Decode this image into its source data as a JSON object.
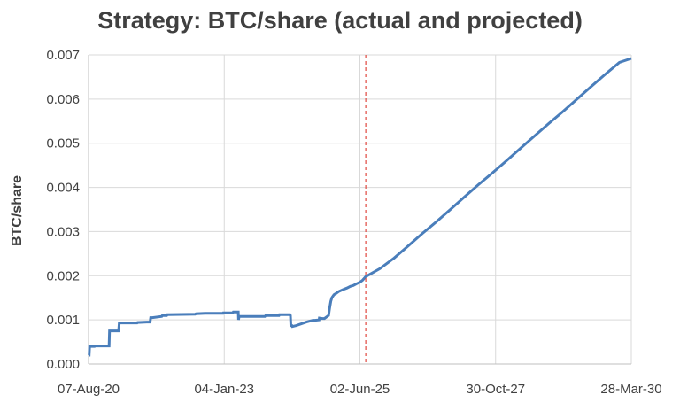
{
  "chart_data": {
    "type": "line",
    "title": "Strategy: BTC/share (actual and projected)",
    "xlabel": "",
    "ylabel": "BTC/share",
    "x_type": "date",
    "x_tick_labels": [
      "07-Aug-20",
      "04-Jan-23",
      "02-Jun-25",
      "30-Oct-27",
      "28-Mar-30"
    ],
    "x_tick_dates": [
      "2020-08-07",
      "2023-01-04",
      "2025-06-02",
      "2027-10-30",
      "2030-03-28"
    ],
    "xlim": [
      "2020-08-07",
      "2030-03-28"
    ],
    "y_tick_labels": [
      "0.000",
      "0.001",
      "0.002",
      "0.003",
      "0.004",
      "0.005",
      "0.006",
      "0.007"
    ],
    "ylim": [
      0,
      0.007
    ],
    "grid": true,
    "legend": "none",
    "colors": {
      "series": "#4a7ebb",
      "marker_line": "#e0473f",
      "grid": "#d9d9d9",
      "text": "#404040"
    },
    "vertical_marker": {
      "date": "2025-07-10",
      "style": "dashed"
    },
    "series": [
      {
        "x": [
          "2020-08-07",
          "2020-08-11",
          "2020-08-14",
          "2020-09-14",
          "2020-09-15",
          "2020-12-18",
          "2020-12-21",
          "2021-02-18",
          "2021-02-22",
          "2021-06-18",
          "2021-06-21",
          "2021-08-19",
          "2021-09-10",
          "2021-09-14",
          "2021-09-25",
          "2021-11-25",
          "2021-11-29",
          "2021-12-27",
          "2021-12-31",
          "2022-06-30",
          "2022-07-05",
          "2022-09-01",
          "2022-12-27",
          "2022-12-29",
          "2023-02-28",
          "2023-03-04",
          "2023-04-05",
          "2023-04-07",
          "2023-04-10",
          "2023-06-28",
          "2023-09-25",
          "2023-09-30",
          "2023-12-25",
          "2023-12-28",
          "2024-01-10",
          "2024-03-05",
          "2024-03-08",
          "2024-03-11",
          "2024-03-18",
          "2024-03-21",
          "2024-04-15",
          "2024-06-20",
          "2024-08-01",
          "2024-08-15",
          "2024-09-10",
          "2024-09-12",
          "2024-10-01",
          "2024-10-15",
          "2024-11-11",
          "2024-11-18",
          "2024-11-25",
          "2024-12-02",
          "2024-12-16",
          "2024-12-30",
          "2025-01-15",
          "2025-02-15",
          "2025-03-10",
          "2025-04-01",
          "2025-04-20",
          "2025-05-12",
          "2025-06-01",
          "2025-06-20",
          "2025-07-10",
          "2025-10-10",
          "2026-01-10",
          "2026-04-10",
          "2026-07-10",
          "2026-10-10",
          "2027-01-10",
          "2027-04-10",
          "2027-07-10",
          "2027-10-10",
          "2028-01-10",
          "2028-04-10",
          "2028-07-10",
          "2028-10-10",
          "2029-01-10",
          "2029-04-10",
          "2029-07-10",
          "2029-10-10",
          "2030-01-10",
          "2030-03-28"
        ],
        "y": [
          0.0002,
          0.0002,
          0.0004,
          0.0004,
          0.00041,
          0.00041,
          0.00075,
          0.00075,
          0.00093,
          0.00093,
          0.00094,
          0.00095,
          0.00095,
          0.00105,
          0.00105,
          0.00108,
          0.0011,
          0.0011,
          0.00112,
          0.00113,
          0.00114,
          0.00115,
          0.00115,
          0.00116,
          0.00116,
          0.00118,
          0.00118,
          0.001,
          0.00108,
          0.00108,
          0.00108,
          0.0011,
          0.0011,
          0.00112,
          0.00112,
          0.00112,
          0.0011,
          0.00087,
          0.00087,
          0.00085,
          0.00087,
          0.00095,
          0.00099,
          0.00099,
          0.001,
          0.00104,
          0.00103,
          0.00103,
          0.0011,
          0.00128,
          0.00142,
          0.0015,
          0.00157,
          0.0016,
          0.00164,
          0.00169,
          0.00172,
          0.00176,
          0.00178,
          0.00182,
          0.00185,
          0.0019,
          0.00198,
          0.00216,
          0.0024,
          0.00267,
          0.00295,
          0.00322,
          0.0035,
          0.00378,
          0.00406,
          0.00433,
          0.00461,
          0.00489,
          0.00517,
          0.00545,
          0.00572,
          0.006,
          0.00628,
          0.00656,
          0.00683,
          0.00692
        ]
      }
    ]
  }
}
